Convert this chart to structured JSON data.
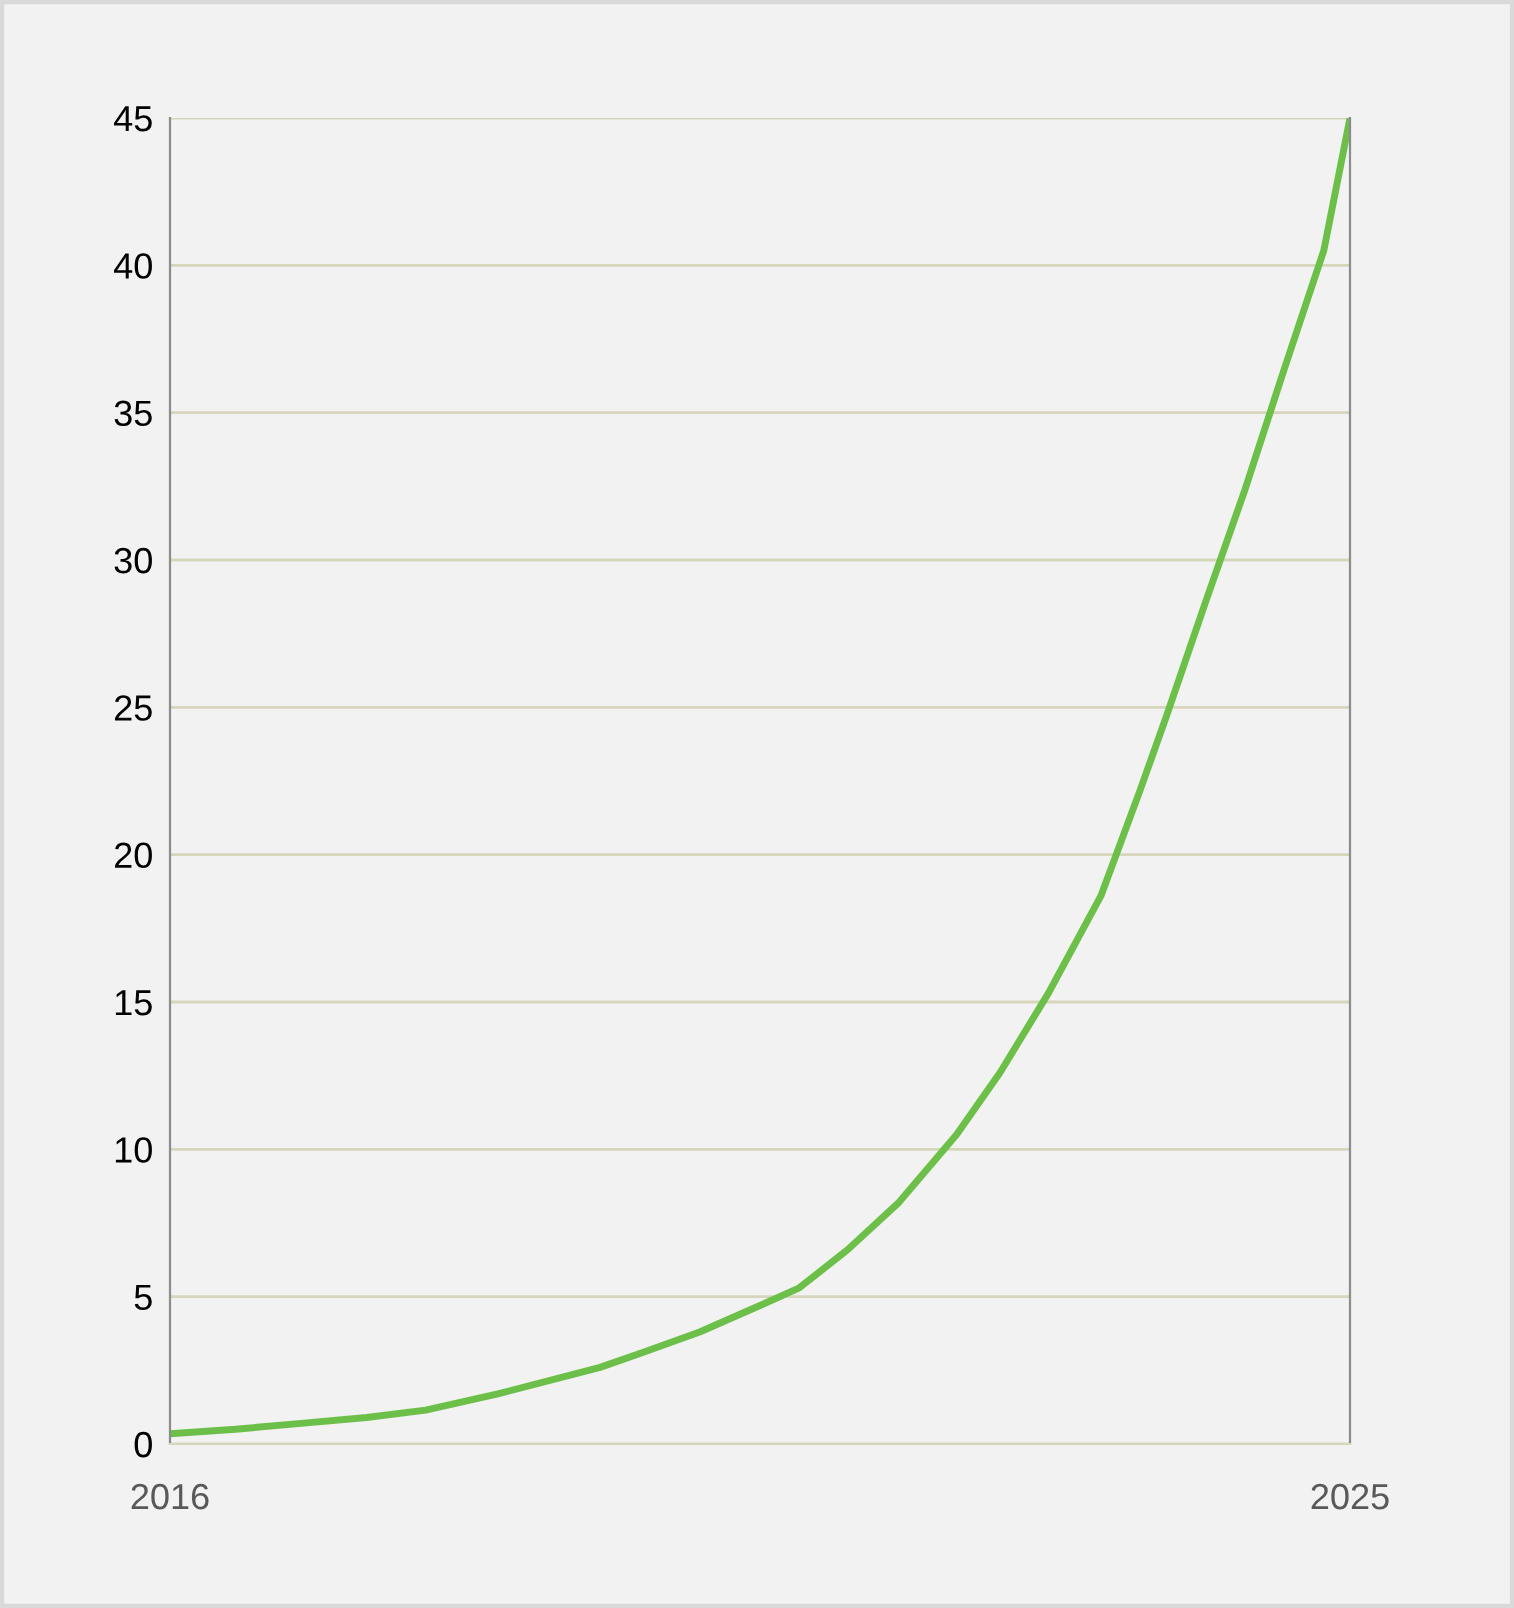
{
  "chart_data": {
    "type": "line",
    "x": [
      2016,
      2016.5,
      2017,
      2017.5,
      2017.95,
      2018.5,
      2019.28,
      2019.6,
      2020.04,
      2020.5,
      2020.8,
      2021.17,
      2021.56,
      2022.0,
      2022.33,
      2022.7,
      2023.1,
      2023.4,
      2023.6,
      2023.9,
      2024.2,
      2024.5,
      2024.8,
      2025
    ],
    "series": [
      {
        "color": "#6cc04a",
        "values": [
          0.35,
          0.5,
          0.7,
          0.9,
          1.15,
          1.7,
          2.6,
          3.1,
          3.8,
          4.7,
          5.3,
          6.6,
          8.2,
          10.5,
          12.6,
          15.3,
          18.6,
          22.2,
          24.7,
          28.6,
          32.4,
          36.5,
          40.5,
          45
        ]
      }
    ],
    "xlim": [
      2016,
      2025
    ],
    "xticks": [
      2016,
      2025
    ],
    "ylim": [
      0,
      45
    ],
    "yticks": [
      0,
      5,
      10,
      15,
      20,
      25,
      30,
      35,
      40,
      45
    ],
    "grid": "y",
    "line_style": "solid",
    "marker": "none",
    "legend": false
  }
}
